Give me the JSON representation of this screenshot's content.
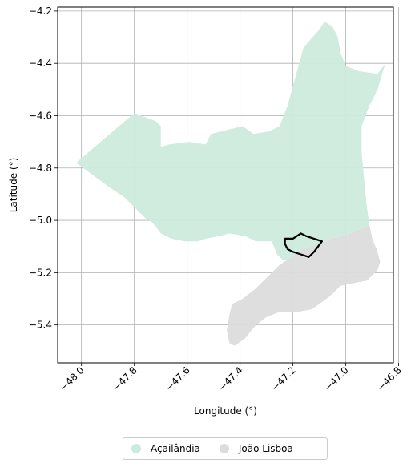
{
  "chart_data": {
    "type": "map",
    "xlabel": "Longitude (°)",
    "ylabel": "Latitude (°)",
    "xlim": [
      -48.09,
      -46.82
    ],
    "ylim": [
      -5.545,
      -4.185
    ],
    "xticks": [
      -48.0,
      -47.8,
      -47.6,
      -47.4,
      -47.2,
      -47.0,
      -46.8
    ],
    "xtick_labels": [
      "−48.0",
      "−47.8",
      "−47.6",
      "−47.4",
      "−47.2",
      "−47.0",
      "−46.8"
    ],
    "yticks": [
      -4.2,
      -4.4,
      -4.6,
      -4.8,
      -5.0,
      -5.2,
      -5.4
    ],
    "ytick_labels": [
      "−4.2",
      "−4.4",
      "−4.6",
      "−4.8",
      "−5.0",
      "−5.2",
      "−5.4"
    ],
    "grid": true,
    "legend_position": "bottom-center",
    "series": [
      {
        "name": "Açailândia",
        "color": "#cdebdd",
        "polygon": [
          [
            -48.02,
            -4.78
          ],
          [
            -47.8,
            -4.59
          ],
          [
            -47.72,
            -4.62
          ],
          [
            -47.7,
            -4.64
          ],
          [
            -47.7,
            -4.72
          ],
          [
            -47.67,
            -4.71
          ],
          [
            -47.59,
            -4.7
          ],
          [
            -47.53,
            -4.71
          ],
          [
            -47.51,
            -4.67
          ],
          [
            -47.39,
            -4.64
          ],
          [
            -47.35,
            -4.67
          ],
          [
            -47.29,
            -4.66
          ],
          [
            -47.25,
            -4.64
          ],
          [
            -47.22,
            -4.56
          ],
          [
            -47.19,
            -4.45
          ],
          [
            -47.16,
            -4.34
          ],
          [
            -47.1,
            -4.27
          ],
          [
            -47.08,
            -4.24
          ],
          [
            -47.05,
            -4.26
          ],
          [
            -47.03,
            -4.3
          ],
          [
            -47.02,
            -4.36
          ],
          [
            -47.0,
            -4.41
          ],
          [
            -46.95,
            -4.43
          ],
          [
            -46.88,
            -4.44
          ],
          [
            -46.85,
            -4.4
          ],
          [
            -46.88,
            -4.5
          ],
          [
            -46.91,
            -4.56
          ],
          [
            -46.94,
            -4.64
          ],
          [
            -46.94,
            -4.74
          ],
          [
            -46.93,
            -4.85
          ],
          [
            -46.92,
            -4.95
          ],
          [
            -46.91,
            -5.02
          ],
          [
            -46.98,
            -5.05
          ],
          [
            -47.05,
            -5.07
          ],
          [
            -47.1,
            -5.09
          ],
          [
            -47.17,
            -5.11
          ],
          [
            -47.22,
            -5.15
          ],
          [
            -47.24,
            -5.15
          ],
          [
            -47.26,
            -5.13
          ],
          [
            -47.28,
            -5.08
          ],
          [
            -47.34,
            -5.08
          ],
          [
            -47.38,
            -5.06
          ],
          [
            -47.44,
            -5.05
          ],
          [
            -47.48,
            -5.06
          ],
          [
            -47.53,
            -5.07
          ],
          [
            -47.56,
            -5.08
          ],
          [
            -47.61,
            -5.08
          ],
          [
            -47.66,
            -5.07
          ],
          [
            -47.7,
            -5.05
          ],
          [
            -47.73,
            -5.01
          ],
          [
            -47.76,
            -4.99
          ],
          [
            -47.8,
            -4.95
          ],
          [
            -47.84,
            -4.91
          ],
          [
            -47.9,
            -4.87
          ]
        ]
      },
      {
        "name": "João Lisboa",
        "color": "#dcdcdc",
        "polygon": [
          [
            -46.91,
            -5.02
          ],
          [
            -46.9,
            -5.07
          ],
          [
            -46.88,
            -5.12
          ],
          [
            -46.87,
            -5.16
          ],
          [
            -46.88,
            -5.19
          ],
          [
            -46.92,
            -5.23
          ],
          [
            -46.97,
            -5.24
          ],
          [
            -47.02,
            -5.25
          ],
          [
            -47.06,
            -5.29
          ],
          [
            -47.1,
            -5.32
          ],
          [
            -47.13,
            -5.34
          ],
          [
            -47.18,
            -5.35
          ],
          [
            -47.25,
            -5.35
          ],
          [
            -47.3,
            -5.37
          ],
          [
            -47.34,
            -5.4
          ],
          [
            -47.38,
            -5.45
          ],
          [
            -47.42,
            -5.48
          ],
          [
            -47.44,
            -5.47
          ],
          [
            -47.45,
            -5.42
          ],
          [
            -47.44,
            -5.36
          ],
          [
            -47.43,
            -5.32
          ],
          [
            -47.39,
            -5.3
          ],
          [
            -47.34,
            -5.26
          ],
          [
            -47.29,
            -5.21
          ],
          [
            -47.25,
            -5.17
          ],
          [
            -47.22,
            -5.15
          ],
          [
            -47.17,
            -5.11
          ],
          [
            -47.1,
            -5.09
          ],
          [
            -47.05,
            -5.07
          ],
          [
            -46.98,
            -5.05
          ]
        ]
      }
    ],
    "highlight_outline": {
      "color": "#000000",
      "polygon": [
        [
          -47.23,
          -5.07
        ],
        [
          -47.2,
          -5.07
        ],
        [
          -47.17,
          -5.05
        ],
        [
          -47.15,
          -5.06
        ],
        [
          -47.12,
          -5.07
        ],
        [
          -47.09,
          -5.08
        ],
        [
          -47.12,
          -5.12
        ],
        [
          -47.14,
          -5.14
        ],
        [
          -47.17,
          -5.13
        ],
        [
          -47.2,
          -5.12
        ],
        [
          -47.22,
          -5.11
        ],
        [
          -47.23,
          -5.09
        ]
      ]
    }
  },
  "legend": {
    "items": [
      {
        "label": "Açailândia",
        "color": "#cdebdd"
      },
      {
        "label": "João Lisboa",
        "color": "#dcdcdc"
      }
    ]
  }
}
